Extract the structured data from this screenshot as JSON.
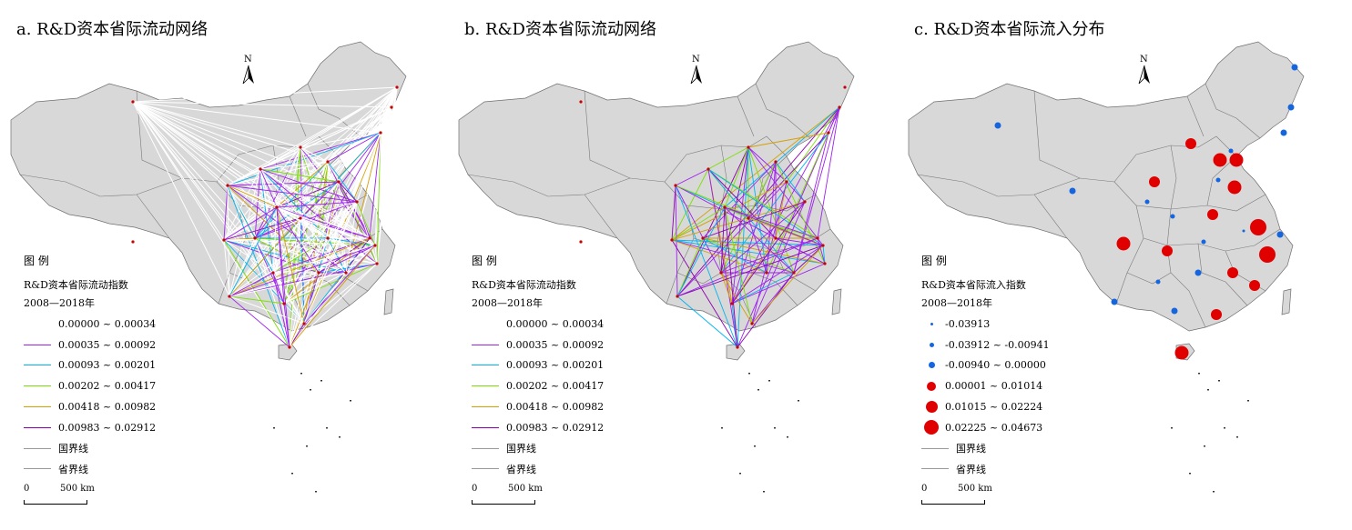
{
  "panels": [
    {
      "title": "a. R&D资本省际流动网络",
      "north": "N",
      "legend_title": "图 例",
      "legend_subtitle": "R&D资本省际流动指数",
      "legend_period": "2008—2018年",
      "legend_items": [
        {
          "label": "0.00000 ~ 0.00034",
          "color": "#ffffff"
        },
        {
          "label": "0.00035 ~ 0.00092",
          "color": "#a020f0"
        },
        {
          "label": "0.00093 ~ 0.00201",
          "color": "#00b4f0"
        },
        {
          "label": "0.00202 ~ 0.00417",
          "color": "#7be000"
        },
        {
          "label": "0.00418 ~ 0.00982",
          "color": "#d4a000"
        },
        {
          "label": "0.00983 ~ 0.02912",
          "color": "#8a00b0"
        },
        {
          "label": "国界线",
          "color": "#9a9a9a"
        },
        {
          "label": "省界线",
          "color": "#9a9a9a"
        }
      ],
      "scale_zero": "0",
      "scale_label": "500  km"
    },
    {
      "title": "b. R&D资本省际流动网络",
      "north": "N",
      "legend_title": "图 例",
      "legend_subtitle": "R&D资本省际流动指数",
      "legend_period": "2008—2018年",
      "legend_items": [
        {
          "label": "0.00000 ~ 0.00034",
          "color": "#ffffff"
        },
        {
          "label": "0.00035 ~ 0.00092",
          "color": "#a020f0"
        },
        {
          "label": "0.00093 ~ 0.00201",
          "color": "#00b4f0"
        },
        {
          "label": "0.00202 ~ 0.00417",
          "color": "#7be000"
        },
        {
          "label": "0.00418 ~ 0.00982",
          "color": "#d4a000"
        },
        {
          "label": "0.00983 ~ 0.02912",
          "color": "#8a00b0"
        },
        {
          "label": "国界线",
          "color": "#9a9a9a"
        },
        {
          "label": "省界线",
          "color": "#9a9a9a"
        }
      ],
      "scale_zero": "0",
      "scale_label": "500  km"
    },
    {
      "title": "c. R&D资本省际流入分布",
      "north": "N",
      "legend_title": "图 例",
      "legend_subtitle": "R&D资本省际流入指数",
      "legend_period": "2008—2018年",
      "legend_items": [
        {
          "label": "-0.03913",
          "color": "#1565e0"
        },
        {
          "label": "-0.03912 ~ -0.00941",
          "color": "#1565e0"
        },
        {
          "label": "-0.00940 ~ 0.00000",
          "color": "#1565e0"
        },
        {
          "label": "0.00001 ~ 0.01014",
          "color": "#e00000"
        },
        {
          "label": "0.01015 ~ 0.02224",
          "color": "#e00000"
        },
        {
          "label": "0.02225 ~ 0.04673",
          "color": "#e00000"
        },
        {
          "label": "国界线",
          "color": "#9a9a9a"
        },
        {
          "label": "省界线",
          "color": "#9a9a9a"
        }
      ],
      "scale_zero": "0",
      "scale_label": "500  km"
    }
  ]
}
